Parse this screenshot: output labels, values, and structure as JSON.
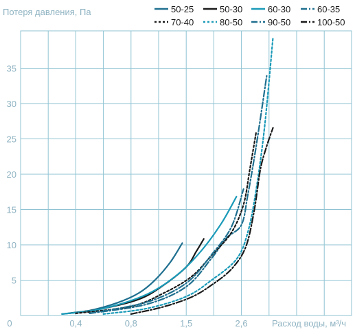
{
  "chart_data": {
    "type": "line",
    "ylabel": "Потеря давления, Па",
    "xlabel": "Расход воды, м³/ч",
    "y_ticks": [
      "5",
      "10",
      "15",
      "20",
      "25",
      "30",
      "35"
    ],
    "x_ticks": [
      "0,4",
      "0,8",
      "1,5",
      "2,6"
    ],
    "origin_label": "0",
    "ylim": [
      0,
      40
    ],
    "grid": true,
    "legend_position": "top",
    "series": [
      {
        "name": "50-25",
        "color": "#1f6f8f",
        "dash": "solid",
        "x": [
          0.3,
          0.5,
          0.7,
          0.9,
          1.1,
          1.3,
          1.45
        ],
        "y": [
          0.2,
          0.7,
          1.8,
          3.2,
          5.0,
          7.6,
          10.3
        ]
      },
      {
        "name": "50-30",
        "color": "#1a1a1a",
        "dash": "solid",
        "x": [
          0.35,
          0.6,
          0.9,
          1.2,
          1.5,
          1.7,
          1.85
        ],
        "y": [
          0.3,
          1.0,
          2.3,
          4.2,
          6.9,
          9.1,
          10.9
        ]
      },
      {
        "name": "60-30",
        "color": "#1a9ab8",
        "dash": "solid",
        "x": [
          0.3,
          0.6,
          1.0,
          1.4,
          1.8,
          2.2,
          2.5
        ],
        "y": [
          0.2,
          1.0,
          3.0,
          5.9,
          9.2,
          13.1,
          16.9
        ]
      },
      {
        "name": "60-35",
        "color": "#1f6f8f",
        "dash": "dashdot",
        "x": [
          0.5,
          1.0,
          1.5,
          2.0,
          2.3,
          2.6,
          2.9,
          3.3,
          3.8
        ],
        "y": [
          0.3,
          1.6,
          4.1,
          8.1,
          11.0,
          12.9,
          17.1,
          24.1,
          34.1
        ]
      },
      {
        "name": "70-40",
        "color": "#1a1a1a",
        "dash": "dotted",
        "x": [
          0.4,
          0.8,
          1.2,
          1.6,
          2.0,
          2.4,
          2.7,
          3.0,
          3.3
        ],
        "y": [
          0.3,
          1.3,
          3.1,
          5.5,
          8.5,
          11.8,
          15.8,
          20.8,
          26.1
        ]
      },
      {
        "name": "80-50",
        "color": "#1a9ab8",
        "dash": "dotted",
        "x": [
          0.6,
          1.0,
          1.5,
          2.0,
          2.5,
          2.9,
          3.3,
          3.7,
          4.1
        ],
        "y": [
          0.2,
          1.0,
          2.7,
          5.0,
          8.0,
          11.8,
          17.9,
          26.9,
          39.6
        ]
      },
      {
        "name": "90-50",
        "color": "#1f6f8f",
        "dash": "dashdot",
        "x": [
          0.5,
          1.0,
          1.5,
          2.0,
          2.4,
          2.7
        ],
        "y": [
          0.3,
          1.9,
          4.6,
          8.6,
          12.6,
          18.0
        ]
      },
      {
        "name": "100-50",
        "color": "#1a1a1a",
        "dash": "dashdot",
        "x": [
          0.8,
          1.2,
          1.6,
          2.0,
          2.4,
          2.8,
          3.2,
          3.5,
          3.8,
          4.1
        ],
        "y": [
          0.2,
          1.2,
          2.6,
          4.3,
          6.6,
          9.7,
          14.8,
          20.8,
          24.1,
          26.7
        ]
      }
    ]
  }
}
